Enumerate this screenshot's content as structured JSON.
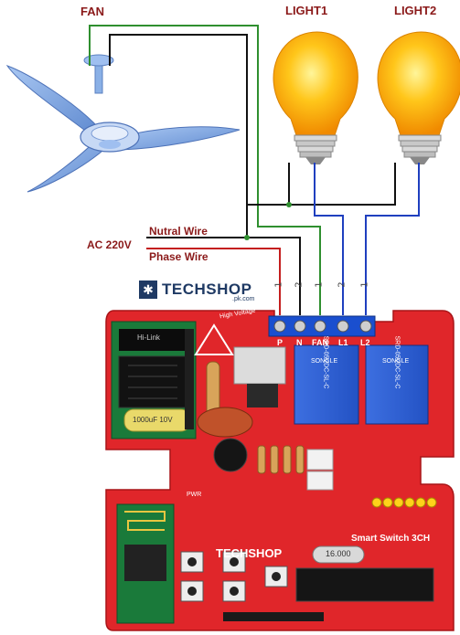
{
  "labels": {
    "fan": "FAN",
    "light1": "LIGHT1",
    "light2": "LIGHT2",
    "neutral": "Nutral Wire",
    "ac": "AC 220V",
    "phase": "Phase Wire"
  },
  "brand": {
    "name": "TECHSHOP",
    "tld": ".pk.com"
  },
  "terminals": [
    "P",
    "N",
    "FAN",
    "L1",
    "L2"
  ],
  "terminal_numbers": [
    "1",
    "2",
    "1",
    "2",
    "1"
  ],
  "board": {
    "title": "Smart Switch 3CH",
    "high_voltage": "High Voltage",
    "relay_text": "SRD-05VDC-SL-C",
    "relay_brand": "SONGLE",
    "cap_text": "1000uF 10V",
    "crystal": "16.000",
    "pwr": "PWR",
    "hlk": "Hi-Link"
  },
  "colors": {
    "board": "#e0262a",
    "wire_green": "#2f8f2f",
    "wire_red": "#c41e1e",
    "wire_blue": "#1f3fbf",
    "wire_black": "#111111",
    "bulb": "#ffb300",
    "fan_blade": "#7fa7dd"
  }
}
